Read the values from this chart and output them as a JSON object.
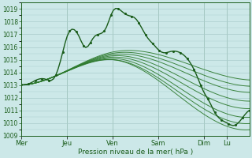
{
  "title": "",
  "xlabel": "Pression niveau de la mer( hPa )",
  "ylabel": "",
  "ylim": [
    1009,
    1019.5
  ],
  "yticks": [
    1009,
    1010,
    1011,
    1012,
    1013,
    1014,
    1015,
    1016,
    1017,
    1018,
    1019
  ],
  "xtick_labels": [
    "Mer",
    "Jeu",
    "Ven",
    "Sam",
    "Dim",
    "Lu"
  ],
  "xtick_positions": [
    0,
    0.2,
    0.4,
    0.6,
    0.8,
    0.9
  ],
  "total_points": 100,
  "bg_color": "#cce8e8",
  "grid_color": "#aacccc",
  "line_color_main": "#1a5c1a",
  "line_color_straight": "#2d7a2d"
}
